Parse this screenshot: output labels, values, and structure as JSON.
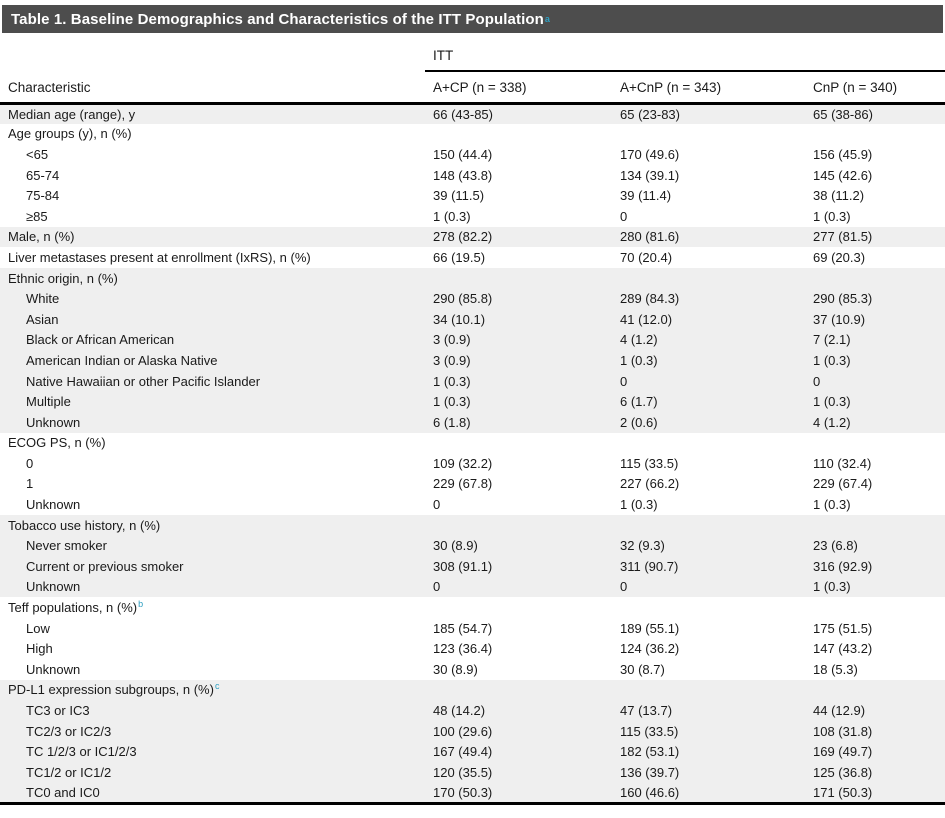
{
  "page": {
    "title": "Table 1. Baseline Demographics and Characteristics of the ITT Population",
    "title_superscript": "a"
  },
  "table": {
    "group_header": "ITT",
    "columns": [
      "Characteristic",
      "A+CP (n = 338)",
      "A+CnP (n = 343)",
      "CnP (n = 340)"
    ],
    "rows": [
      {
        "label": "Median age (range), y",
        "indent": 0,
        "shaded": true,
        "values": [
          "66 (43-85)",
          "65 (23-83)",
          "65 (38-86)"
        ]
      },
      {
        "label": "Age groups (y), n (%)",
        "indent": 0,
        "shaded": false,
        "values": [
          "",
          "",
          ""
        ]
      },
      {
        "label": "<65",
        "indent": 1,
        "shaded": false,
        "values": [
          "150 (44.4)",
          "170 (49.6)",
          "156 (45.9)"
        ]
      },
      {
        "label": "65-74",
        "indent": 1,
        "shaded": false,
        "values": [
          "148 (43.8)",
          "134 (39.1)",
          "145 (42.6)"
        ]
      },
      {
        "label": "75-84",
        "indent": 1,
        "shaded": false,
        "values": [
          "39 (11.5)",
          "39 (11.4)",
          "38 (11.2)"
        ]
      },
      {
        "label": "≥85",
        "indent": 1,
        "shaded": false,
        "values": [
          "1 (0.3)",
          "0",
          "1 (0.3)"
        ]
      },
      {
        "label": "Male, n (%)",
        "indent": 0,
        "shaded": true,
        "values": [
          "278 (82.2)",
          "280 (81.6)",
          "277 (81.5)"
        ]
      },
      {
        "label": "Liver metastases present at enrollment (IxRS), n (%)",
        "indent": 0,
        "shaded": false,
        "values": [
          "66 (19.5)",
          "70 (20.4)",
          "69 (20.3)"
        ]
      },
      {
        "label": "Ethnic origin, n (%)",
        "indent": 0,
        "shaded": true,
        "values": [
          "",
          "",
          ""
        ]
      },
      {
        "label": "White",
        "indent": 1,
        "shaded": true,
        "values": [
          "290 (85.8)",
          "289 (84.3)",
          "290 (85.3)"
        ]
      },
      {
        "label": "Asian",
        "indent": 1,
        "shaded": true,
        "values": [
          "34 (10.1)",
          "41 (12.0)",
          "37 (10.9)"
        ]
      },
      {
        "label": "Black or African American",
        "indent": 1,
        "shaded": true,
        "values": [
          "3 (0.9)",
          "4 (1.2)",
          "7 (2.1)"
        ]
      },
      {
        "label": "American Indian or Alaska Native",
        "indent": 1,
        "shaded": true,
        "values": [
          "3 (0.9)",
          "1 (0.3)",
          "1 (0.3)"
        ]
      },
      {
        "label": "Native Hawaiian or other Pacific Islander",
        "indent": 1,
        "shaded": true,
        "values": [
          "1 (0.3)",
          "0",
          "0"
        ]
      },
      {
        "label": "Multiple",
        "indent": 1,
        "shaded": true,
        "values": [
          "1 (0.3)",
          "6 (1.7)",
          "1 (0.3)"
        ]
      },
      {
        "label": "Unknown",
        "indent": 1,
        "shaded": true,
        "values": [
          "6 (1.8)",
          "2 (0.6)",
          "4 (1.2)"
        ]
      },
      {
        "label": "ECOG PS, n (%)",
        "indent": 0,
        "shaded": false,
        "values": [
          "",
          "",
          ""
        ]
      },
      {
        "label": "0",
        "indent": 1,
        "shaded": false,
        "values": [
          "109 (32.2)",
          "115 (33.5)",
          "110 (32.4)"
        ]
      },
      {
        "label": "1",
        "indent": 1,
        "shaded": false,
        "values": [
          "229 (67.8)",
          "227 (66.2)",
          "229 (67.4)"
        ]
      },
      {
        "label": "Unknown",
        "indent": 1,
        "shaded": false,
        "values": [
          "0",
          "1 (0.3)",
          "1 (0.3)"
        ]
      },
      {
        "label": "Tobacco use history, n (%)",
        "indent": 0,
        "shaded": true,
        "values": [
          "",
          "",
          ""
        ]
      },
      {
        "label": "Never smoker",
        "indent": 1,
        "shaded": true,
        "values": [
          "30 (8.9)",
          "32 (9.3)",
          "23 (6.8)"
        ]
      },
      {
        "label": "Current or previous smoker",
        "indent": 1,
        "shaded": true,
        "values": [
          "308 (91.1)",
          "311 (90.7)",
          "316 (92.9)"
        ]
      },
      {
        "label": "Unknown",
        "indent": 1,
        "shaded": true,
        "values": [
          "0",
          "0",
          "1 (0.3)"
        ]
      },
      {
        "label": "Teff populations, n (%)",
        "sup": "b",
        "indent": 0,
        "shaded": false,
        "values": [
          "",
          "",
          ""
        ]
      },
      {
        "label": "Low",
        "indent": 1,
        "shaded": false,
        "values": [
          "185 (54.7)",
          "189 (55.1)",
          "175 (51.5)"
        ]
      },
      {
        "label": "High",
        "indent": 1,
        "shaded": false,
        "values": [
          "123 (36.4)",
          "124 (36.2)",
          "147 (43.2)"
        ]
      },
      {
        "label": "Unknown",
        "indent": 1,
        "shaded": false,
        "values": [
          "30 (8.9)",
          "30 (8.7)",
          "18 (5.3)"
        ]
      },
      {
        "label": "PD-L1 expression subgroups, n (%)",
        "sup": "c",
        "indent": 0,
        "shaded": true,
        "values": [
          "",
          "",
          ""
        ]
      },
      {
        "label": "TC3 or IC3",
        "indent": 1,
        "shaded": true,
        "values": [
          "48 (14.2)",
          "47 (13.7)",
          "44 (12.9)"
        ]
      },
      {
        "label": "TC2/3 or IC2/3",
        "indent": 1,
        "shaded": true,
        "values": [
          "100 (29.6)",
          "115 (33.5)",
          "108 (31.8)"
        ]
      },
      {
        "label": "TC 1/2/3 or IC1/2/3",
        "indent": 1,
        "shaded": true,
        "values": [
          "167 (49.4)",
          "182 (53.1)",
          "169 (49.7)"
        ]
      },
      {
        "label": "TC1/2 or IC1/2",
        "indent": 1,
        "shaded": true,
        "values": [
          "120 (35.5)",
          "136 (39.7)",
          "125 (36.8)"
        ]
      },
      {
        "label": "TC0 and IC0",
        "indent": 1,
        "shaded": true,
        "values": [
          "170 (50.3)",
          "160 (46.6)",
          "171 (50.3)"
        ]
      }
    ]
  },
  "colors": {
    "title_bar": "#4d4d4d",
    "title_text": "#ffffff",
    "footnote_accent": "#2f9fc1",
    "row_shade": "#efefef",
    "rule": "#000000"
  }
}
